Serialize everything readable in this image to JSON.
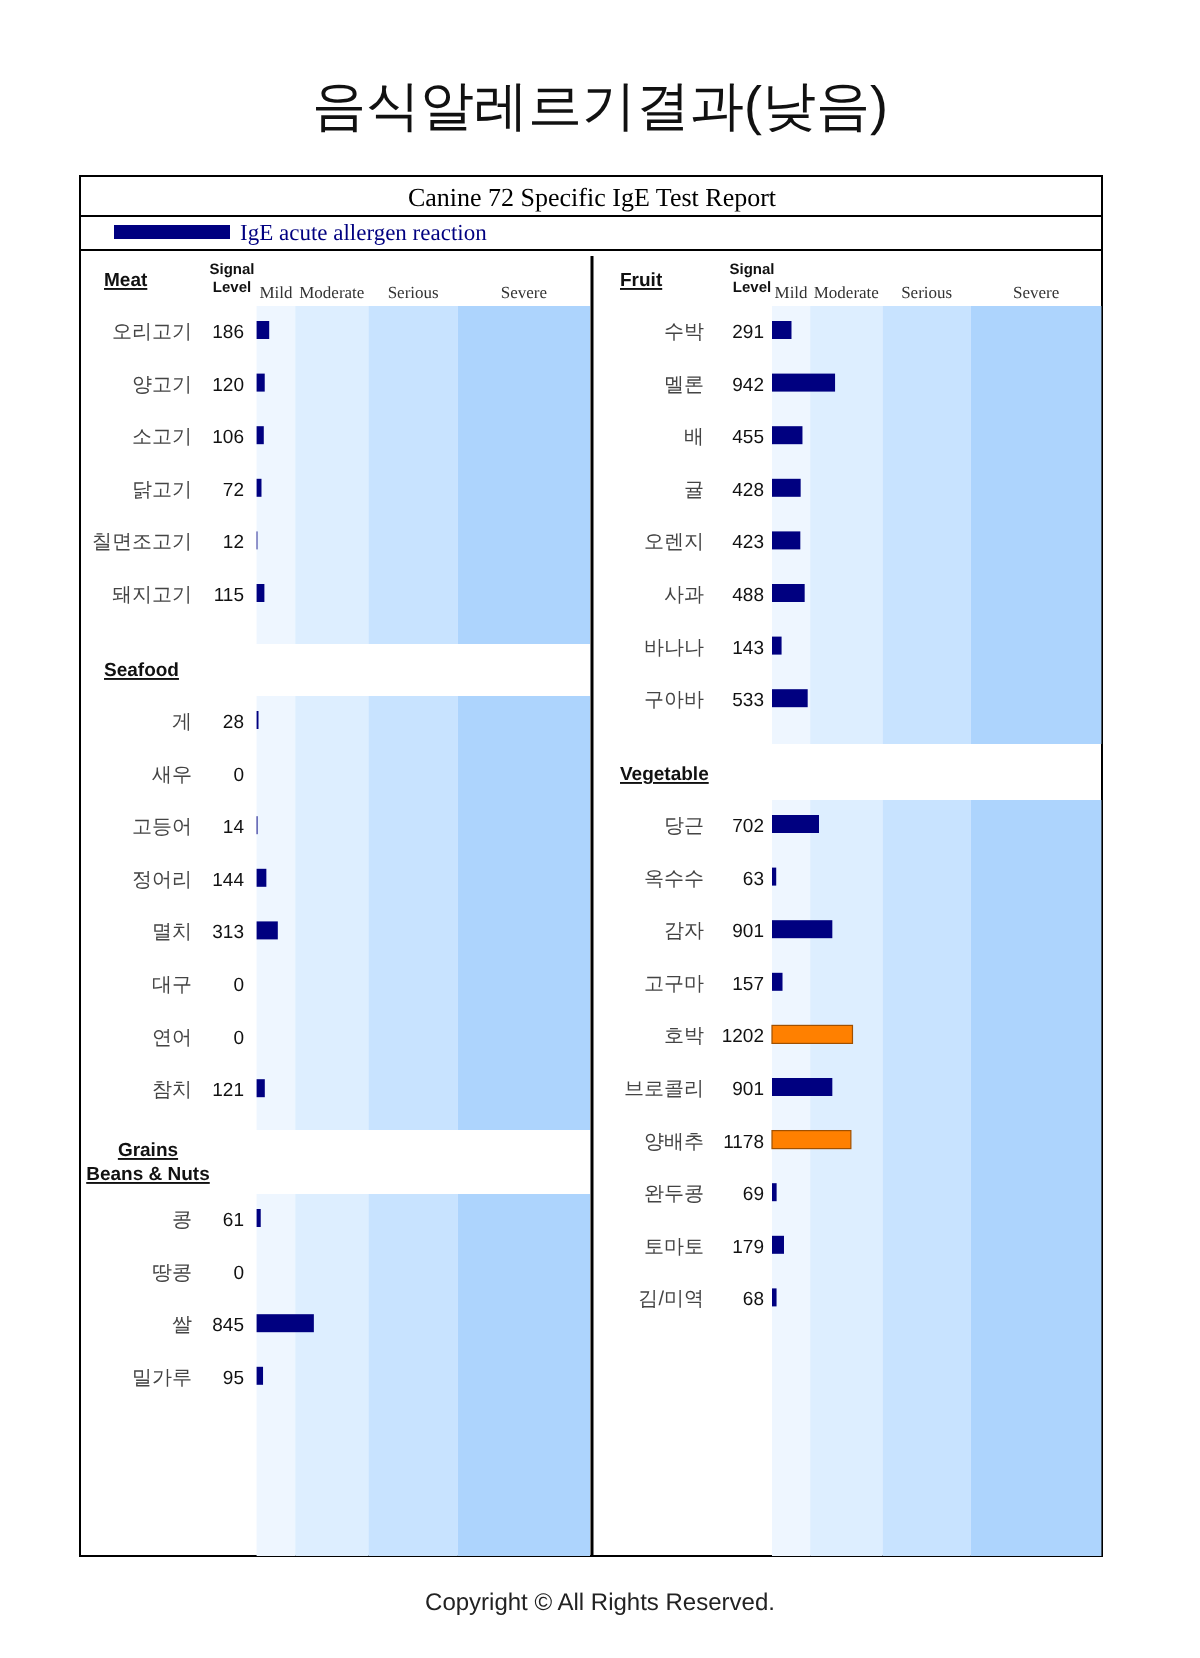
{
  "chart_data": [
    {
      "type": "other",
      "title": "음식알레르기결과(낮음)",
      "subtitle": "Canine 72 Specific IgE Test Report",
      "annotations": [
        "Copyright © All Rights Reserved."
      ]
    },
    {
      "type": "bar",
      "orientation": "horizontal",
      "title": "Meat",
      "categories": [
        "오리고기",
        "양고기",
        "소고기",
        "닭고기",
        "칠면조고기",
        "돼지고기"
      ],
      "series": [
        {
          "name": "IgE acute allergen reaction",
          "color": "#000080",
          "values": [
            186,
            120,
            106,
            72,
            12,
            115
          ],
          "colors": [
            "#000080",
            "#000080",
            "#000080",
            "#000080",
            "#000080",
            "#000080"
          ]
        }
      ],
      "legend": "top",
      "xlim": [
        0,
        4920
      ],
      "data_labels": true,
      "tick_labels": "y",
      "annotations": [
        "Signal Level"
      ],
      "bands": [
        {
          "axis": "x",
          "from": 0,
          "to": 570,
          "label": "Mild",
          "color": "#eef6ff"
        },
        {
          "axis": "x",
          "from": 570,
          "to": 1650,
          "label": "Moderate",
          "color": "#ddeeff"
        },
        {
          "axis": "x",
          "from": 1650,
          "to": 2970,
          "label": "Serious",
          "color": "#c8e3ff"
        },
        {
          "axis": "x",
          "from": 2970,
          "to": 4920,
          "label": "Severe",
          "color": "#add4fd"
        }
      ]
    },
    {
      "type": "bar",
      "orientation": "horizontal",
      "title": "Seafood",
      "categories": [
        "게",
        "새우",
        "고등어",
        "정어리",
        "멸치",
        "대구",
        "연어",
        "참치"
      ],
      "values": [
        28,
        0,
        14,
        144,
        313,
        0,
        0,
        121
      ],
      "colors": [
        "#000080",
        "#000080",
        "#000080",
        "#000080",
        "#000080",
        "#000080",
        "#000080",
        "#000080"
      ],
      "xlim": [
        0,
        4920
      ],
      "data_labels": true,
      "tick_labels": "y",
      "bands": [
        {
          "axis": "x",
          "from": 0,
          "to": 570,
          "color": "#eef6ff"
        },
        {
          "axis": "x",
          "from": 570,
          "to": 1650,
          "color": "#ddeeff"
        },
        {
          "axis": "x",
          "from": 1650,
          "to": 2970,
          "color": "#c8e3ff"
        },
        {
          "axis": "x",
          "from": 2970,
          "to": 4920,
          "color": "#add4fd"
        }
      ]
    },
    {
      "type": "bar",
      "orientation": "horizontal",
      "title": "Grains",
      "subtitle": "Beans & Nuts",
      "categories": [
        "콩",
        "땅콩",
        "쌀",
        "밀가루"
      ],
      "values": [
        61,
        0,
        845,
        95
      ],
      "colors": [
        "#000080",
        "#000080",
        "#000080",
        "#000080"
      ],
      "xlim": [
        0,
        4920
      ],
      "data_labels": true,
      "tick_labels": "y",
      "bands": [
        {
          "axis": "x",
          "from": 0,
          "to": 570,
          "color": "#eef6ff"
        },
        {
          "axis": "x",
          "from": 570,
          "to": 1650,
          "color": "#ddeeff"
        },
        {
          "axis": "x",
          "from": 1650,
          "to": 2970,
          "color": "#c8e3ff"
        },
        {
          "axis": "x",
          "from": 2970,
          "to": 4920,
          "color": "#add4fd"
        }
      ]
    },
    {
      "type": "bar",
      "orientation": "horizontal",
      "title": "Fruit",
      "categories": [
        "수박",
        "멜론",
        "배",
        "귤",
        "오렌지",
        "사과",
        "바나나",
        "구아바"
      ],
      "values": [
        291,
        942,
        455,
        428,
        423,
        488,
        143,
        533
      ],
      "colors": [
        "#000080",
        "#000080",
        "#000080",
        "#000080",
        "#000080",
        "#000080",
        "#000080",
        "#000080"
      ],
      "xlim": [
        0,
        4920
      ],
      "data_labels": true,
      "tick_labels": "y",
      "annotations": [
        "Signal Level"
      ],
      "bands": [
        {
          "axis": "x",
          "from": 0,
          "to": 570,
          "label": "Mild",
          "color": "#eef6ff"
        },
        {
          "axis": "x",
          "from": 570,
          "to": 1650,
          "label": "Moderate",
          "color": "#ddeeff"
        },
        {
          "axis": "x",
          "from": 1650,
          "to": 2970,
          "label": "Serious",
          "color": "#c8e3ff"
        },
        {
          "axis": "x",
          "from": 2970,
          "to": 4920,
          "label": "Severe",
          "color": "#add4fd"
        }
      ]
    },
    {
      "type": "bar",
      "orientation": "horizontal",
      "title": "Vegetable",
      "categories": [
        "당근",
        "옥수수",
        "감자",
        "고구마",
        "호박",
        "브로콜리",
        "양배추",
        "완두콩",
        "토마토",
        "김/미역"
      ],
      "values": [
        702,
        63,
        901,
        157,
        1202,
        901,
        1178,
        69,
        179,
        68
      ],
      "colors": [
        "#000080",
        "#000080",
        "#000080",
        "#000080",
        "#ff8000",
        "#000080",
        "#ff8000",
        "#000080",
        "#000080",
        "#000080"
      ],
      "xlim": [
        0,
        4920
      ],
      "data_labels": true,
      "tick_labels": "y",
      "bands": [
        {
          "axis": "x",
          "from": 0,
          "to": 570,
          "color": "#eef6ff"
        },
        {
          "axis": "x",
          "from": 570,
          "to": 1650,
          "color": "#ddeeff"
        },
        {
          "axis": "x",
          "from": 1650,
          "to": 2970,
          "color": "#c8e3ff"
        },
        {
          "axis": "x",
          "from": 2970,
          "to": 4920,
          "color": "#add4fd"
        }
      ]
    }
  ]
}
